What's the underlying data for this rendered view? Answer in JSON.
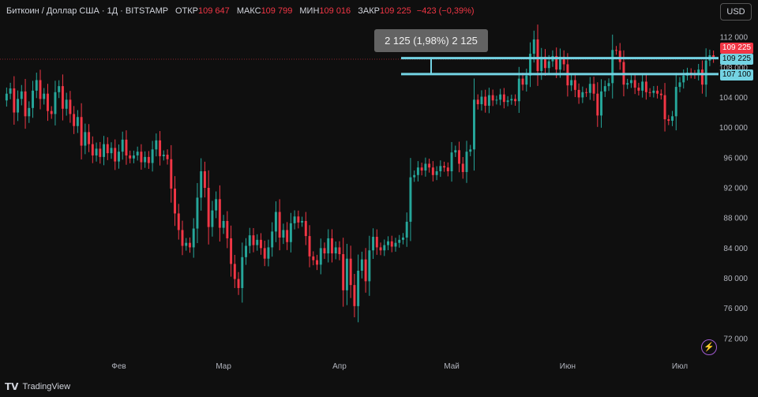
{
  "header": {
    "symbol": "Биткоин / Доллар США · 1Д · BITSTAMP",
    "open_label": "ОТКР",
    "open_value": "109 647",
    "high_label": "МАКС",
    "high_value": "109 799",
    "low_label": "МИН",
    "low_value": "109 016",
    "close_label": "ЗАКР",
    "close_value": "109 225",
    "change_value": "−423 (−0,39%)"
  },
  "currency_button": "USD",
  "measure_label": "2 125 (1,98%) 2 125",
  "price_labels": {
    "current": "109 225",
    "upper_line": "109 225",
    "lower_line": "107 100"
  },
  "brand": "TradingView",
  "icons": {
    "brand": "tradingview-logo-icon",
    "bolt": "lightning-bolt-icon"
  },
  "colors": {
    "up": "#26a69a",
    "down": "#f23645",
    "line": "#74d3e3",
    "background": "#0f0f0f"
  },
  "chart_data": {
    "type": "candlestick",
    "title": "Биткоин / Доллар США · 1Д · BITSTAMP",
    "x_axis_labels": [
      "Фев",
      "Мар",
      "Апр",
      "Май",
      "Июн",
      "Июл"
    ],
    "y_axis_labels": [
      "112 000",
      "108 000",
      "104 000",
      "100 000",
      "96 000",
      "92 000",
      "88 000",
      "84 000",
      "80 000",
      "76 000",
      "72 000"
    ],
    "y_ticks": [
      112000,
      108000,
      104000,
      100000,
      96000,
      92000,
      88000,
      84000,
      80000,
      76000,
      72000
    ],
    "ylim": [
      70000,
      114000
    ],
    "horizontal_lines": [
      109225,
      107100
    ],
    "measure": {
      "from": 107100,
      "to": 109225,
      "change": 2125,
      "percent": 1.98
    },
    "grid": false,
    "close_prices": [
      104500,
      105200,
      102000,
      103800,
      104800,
      101500,
      102600,
      104900,
      106300,
      103800,
      104500,
      102200,
      101800,
      104700,
      105500,
      102500,
      103700,
      101800,
      100200,
      101400,
      97600,
      99400,
      97800,
      96300,
      97200,
      96100,
      97800,
      96600,
      97300,
      95500,
      96800,
      98400,
      96300,
      95900,
      96300,
      96800,
      95400,
      96100,
      95300,
      97100,
      98300,
      96200,
      96400,
      95800,
      91900,
      88600,
      86400,
      84300,
      84700,
      84100,
      86600,
      90700,
      94200,
      92000,
      86800,
      89000,
      90500,
      86700,
      87600,
      85300,
      81900,
      79900,
      78700,
      82800,
      84300,
      85700,
      84400,
      85100,
      84000,
      82600,
      84100,
      86200,
      88800,
      85400,
      86400,
      84800,
      87300,
      88200,
      87400,
      87600,
      85600,
      82900,
      82400,
      81800,
      84000,
      83300,
      85300,
      83300,
      84100,
      83200,
      78400,
      82600,
      79100,
      76300,
      81000,
      82500,
      79600,
      83700,
      85500,
      84100,
      83700,
      84400,
      84900,
      84200,
      84700,
      85100,
      85400,
      87500,
      93400,
      93700,
      94700,
      94300,
      95200,
      94700,
      93700,
      94200,
      94900,
      94700,
      94200,
      96700,
      97000,
      95200,
      94100,
      96800,
      97100,
      103700,
      103100,
      104100,
      102900,
      104300,
      103600,
      103700,
      104400,
      103400,
      103600,
      103800,
      103500,
      106500,
      105700,
      106900,
      109800,
      111700,
      107500,
      109400,
      107900,
      108800,
      109500,
      107700,
      109400,
      108400,
      105600,
      106300,
      105000,
      104000,
      104700,
      104600,
      105800,
      104500,
      101600,
      104800,
      105500,
      105900,
      110300,
      110200,
      108700,
      105700,
      105900,
      106300,
      105300,
      104900,
      106100,
      104700,
      104600,
      104900,
      104500,
      104300,
      101100,
      100900,
      101500,
      105400,
      106000,
      106900,
      107300,
      107100,
      107000,
      107700,
      105700,
      108900,
      109600,
      109225
    ]
  }
}
